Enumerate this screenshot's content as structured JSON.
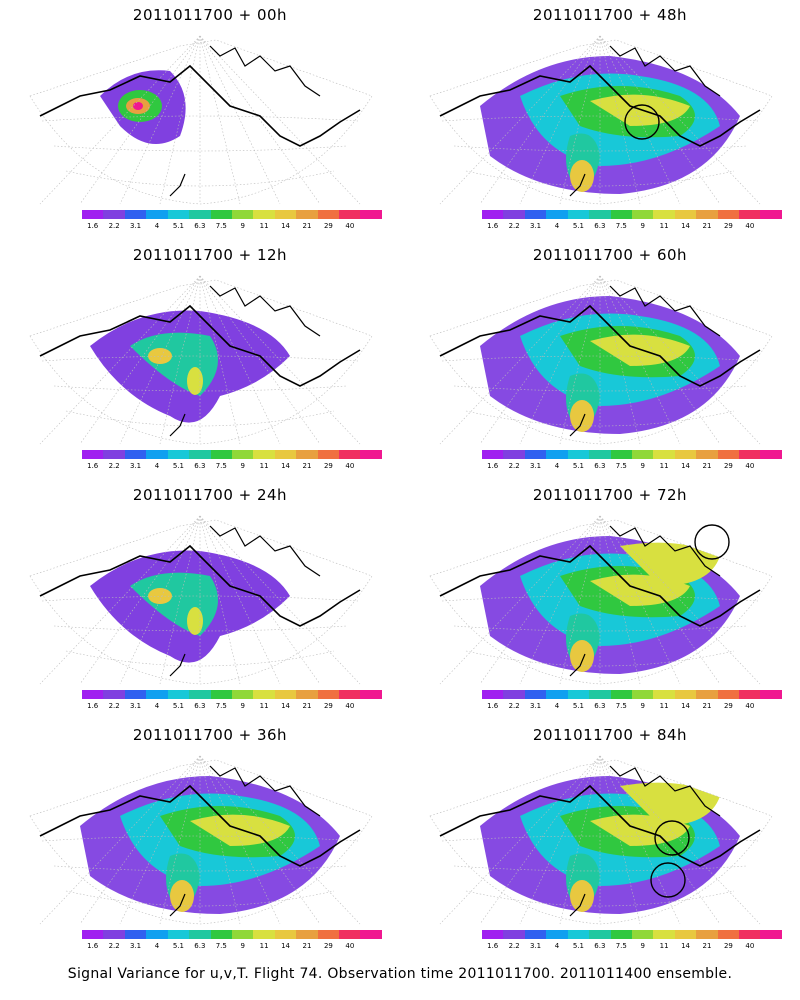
{
  "panels": [
    {
      "title": "2011011700 + 00h",
      "level": 0,
      "circles": []
    },
    {
      "title": "2011011700 + 48h",
      "level": 3,
      "circles": [
        [
          222,
          96
        ]
      ]
    },
    {
      "title": "2011011700 + 12h",
      "level": 1,
      "circles": []
    },
    {
      "title": "2011011700 + 60h",
      "level": 4,
      "circles": []
    },
    {
      "title": "2011011700 + 24h",
      "level": 2,
      "circles": []
    },
    {
      "title": "2011011700 + 72h",
      "level": 5,
      "circles": [
        [
          292,
          36
        ]
      ]
    },
    {
      "title": "2011011700 + 36h",
      "level": 3,
      "circles": []
    },
    {
      "title": "2011011700 + 84h",
      "level": 6,
      "circles": [
        [
          252,
          92
        ],
        [
          248,
          134
        ]
      ]
    }
  ],
  "colorbar": {
    "ticks": [
      "1.6",
      "2.2",
      "3.1",
      "4",
      "5.1",
      "6.3",
      "7.5",
      "9",
      "11",
      "14",
      "21",
      "29",
      "40"
    ],
    "colors": [
      "#a020f0",
      "#8040e0",
      "#3060f0",
      "#10a0f0",
      "#18c8d8",
      "#20c8a0",
      "#30c840",
      "#90d838",
      "#d8e040",
      "#e8c840",
      "#e8a040",
      "#f07040",
      "#f03060",
      "#f01890"
    ]
  },
  "caption": "Signal Variance for u,v,T. Flight 74. Observation time 2011011700. 2011011400 ensemble."
}
